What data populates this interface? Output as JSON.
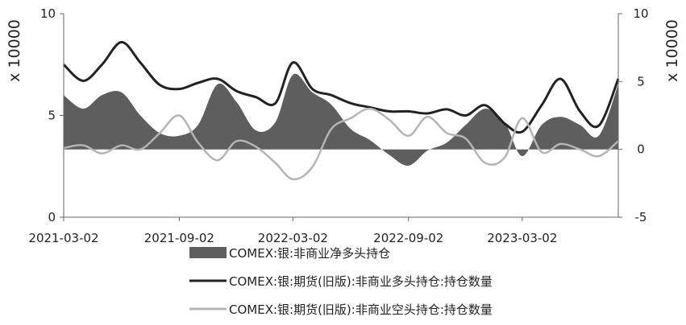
{
  "chart_data": {
    "type": "area",
    "x_dates": [
      "2021-03-02",
      "2021-04-02",
      "2021-05-02",
      "2021-06-02",
      "2021-07-02",
      "2021-08-02",
      "2021-09-02",
      "2021-10-02",
      "2021-11-02",
      "2021-12-02",
      "2022-01-02",
      "2022-02-02",
      "2022-03-02",
      "2022-04-02",
      "2022-05-02",
      "2022-06-02",
      "2022-07-02",
      "2022-08-02",
      "2022-09-02",
      "2022-10-02",
      "2022-11-02",
      "2022-12-02",
      "2023-01-02",
      "2023-02-02",
      "2023-03-02",
      "2023-04-02",
      "2023-05-02",
      "2023-06-02",
      "2023-07-02",
      "2023-08-02"
    ],
    "tick_dates": [
      "2021-03-02",
      "2021-09-02",
      "2022-03-02",
      "2022-09-02",
      "2023-03-02"
    ],
    "x_tick_labels": [
      "2021-03-02",
      "2021-09-02",
      "2022-03-02",
      "2022-09-02",
      "2023-03-02"
    ],
    "left_axis": {
      "label": "x 10000",
      "ylim": [
        0,
        10
      ],
      "ticks": [
        "0",
        "5",
        "10"
      ]
    },
    "right_axis": {
      "label": "x 10000",
      "ylim": [
        -5,
        10
      ],
      "ticks": [
        "-5",
        "0",
        "5",
        "10"
      ]
    },
    "series": [
      {
        "name": "COMEX:银:非商业净多头持仓",
        "kind": "area",
        "axis": "right",
        "color": "#5e5e5e",
        "values": [
          4.0,
          3.0,
          4.0,
          4.2,
          2.5,
          1.2,
          1.0,
          1.8,
          4.8,
          3.5,
          1.4,
          2.0,
          5.5,
          4.2,
          3.3,
          1.5,
          0.7,
          -0.4,
          -1.2,
          -0.1,
          0.5,
          1.8,
          3.0,
          2.0,
          -0.5,
          1.8,
          2.4,
          1.8,
          1.0,
          4.8
        ]
      },
      {
        "name": "COMEX:银:期货(旧版):非商业多头持仓:持仓数量",
        "kind": "line",
        "axis": "left",
        "color": "#222222",
        "values": [
          7.5,
          6.7,
          7.5,
          8.6,
          7.6,
          6.5,
          6.3,
          6.6,
          6.8,
          6.2,
          5.9,
          5.6,
          7.6,
          6.3,
          6.0,
          5.6,
          5.4,
          5.2,
          5.2,
          5.1,
          5.3,
          5.0,
          5.5,
          4.6,
          4.2,
          5.5,
          6.8,
          5.2,
          4.5,
          6.8
        ]
      },
      {
        "name": "COMEX:银:期货(旧版):非商业空头持仓:持仓数量",
        "kind": "line",
        "axis": "right",
        "color": "#b4b4b4",
        "values": [
          0.1,
          0.3,
          -0.3,
          0.3,
          0.0,
          1.2,
          2.5,
          0.5,
          -0.8,
          0.6,
          0.2,
          -1.0,
          -2.2,
          -1.3,
          1.5,
          2.3,
          3.0,
          2.2,
          1.0,
          2.4,
          1.2,
          0.8,
          -1.0,
          -0.6,
          2.3,
          -0.2,
          0.4,
          0.0,
          -0.5,
          0.6
        ]
      }
    ],
    "legend_position": "bottom"
  }
}
